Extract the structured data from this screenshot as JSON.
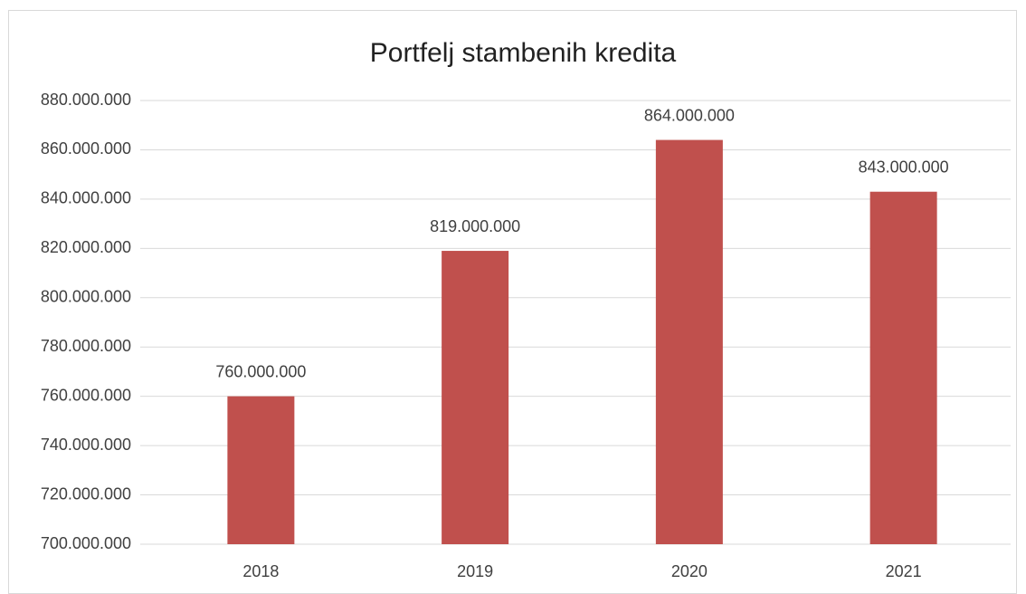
{
  "chart_data": {
    "type": "bar",
    "title": "Portfelj stambenih kredita",
    "categories": [
      "2018",
      "2019",
      "2020",
      "2021"
    ],
    "values": [
      760000000,
      819000000,
      864000000,
      843000000
    ],
    "value_labels": [
      "760.000.000",
      "819.000.000",
      "864.000.000",
      "843.000.000"
    ],
    "color": "#c0504d",
    "ylim": [
      700000000,
      880000000
    ],
    "yticks": [
      {
        "value": 700000000,
        "label": "700.000.000"
      },
      {
        "value": 720000000,
        "label": "720.000.000"
      },
      {
        "value": 740000000,
        "label": "740.000.000"
      },
      {
        "value": 760000000,
        "label": "760.000.000"
      },
      {
        "value": 780000000,
        "label": "780.000.000"
      },
      {
        "value": 800000000,
        "label": "800.000.000"
      },
      {
        "value": 820000000,
        "label": "820.000.000"
      },
      {
        "value": 840000000,
        "label": "840.000.000"
      },
      {
        "value": 860000000,
        "label": "860.000.000"
      },
      {
        "value": 880000000,
        "label": "880.000.000"
      }
    ],
    "grid": true
  }
}
